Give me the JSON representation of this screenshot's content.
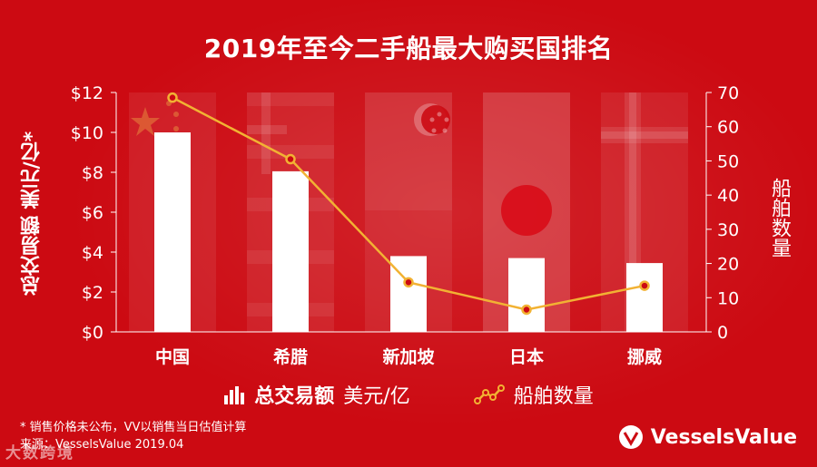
{
  "chart_data": {
    "type": "bar",
    "title": "2019年至今二手船最大购买国排名",
    "categories": [
      "中国",
      "希腊",
      "新加坡",
      "日本",
      "挪威"
    ],
    "series": [
      {
        "name": "总交易额 美元/亿",
        "type": "bar",
        "axis": "left",
        "values": [
          10.0,
          8.05,
          3.8,
          3.7,
          3.45
        ]
      },
      {
        "name": "船舶数量",
        "type": "line",
        "axis": "right",
        "values": [
          68.5,
          50.5,
          14.5,
          6.5,
          13.5
        ]
      }
    ],
    "ylabel_left": "总交易额 美元/亿*",
    "ylabel_right": "船舶数量",
    "ylim_left": [
      0,
      12
    ],
    "ylim_right": [
      0,
      70
    ],
    "yticks_left": [
      "$0",
      "$2",
      "$4",
      "$6",
      "$8",
      "$10",
      "$12"
    ],
    "yticks_right": [
      "0",
      "10",
      "20",
      "30",
      "40",
      "50",
      "60",
      "70"
    ],
    "grid": false,
    "legend_position": "bottom"
  },
  "legend": {
    "bar_bold": "总交易额",
    "bar_rest": "美元/亿",
    "line": "船舶数量"
  },
  "footnote": {
    "line1": "* 销售价格未公布，VV以销售当日估值计算",
    "line2": "来源：VesselsValue 2019.04"
  },
  "brand": "VesselsValue",
  "watermark": "大数跨境",
  "colors": {
    "background": "#cc0a12",
    "bar": "#ffffff",
    "line": "#f2b233",
    "text": "#ffffff"
  }
}
